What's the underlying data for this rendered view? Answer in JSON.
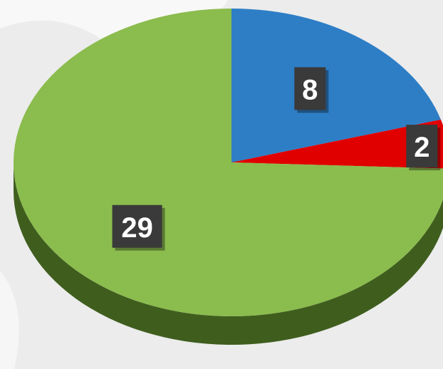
{
  "chart_data": {
    "type": "pie",
    "values": [
      8,
      2,
      29
    ],
    "colors": [
      "#2e7ec6",
      "#e00000",
      "#8bbc4e"
    ],
    "side_colors": [
      "#1b4f80",
      "#8a0000",
      "#3f5e1e"
    ],
    "start_angle": 0,
    "direction": "clockwise"
  }
}
